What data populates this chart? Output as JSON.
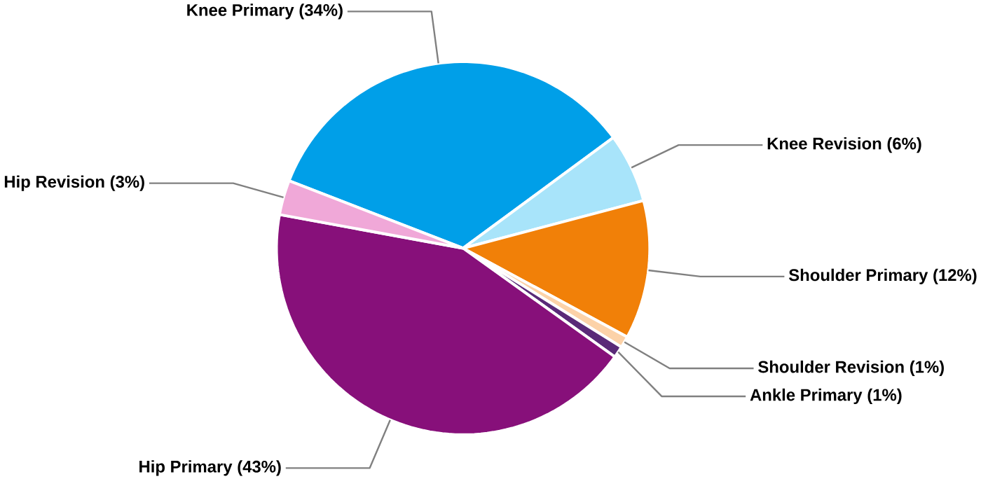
{
  "chart_data": {
    "type": "pie",
    "categories": [
      "Knee Primary (34%)",
      "Knee Revision (6%)",
      "Shoulder Primary (12%)",
      "Shoulder Revision (1%)",
      "Ankle Primary (1%)",
      "Hip Primary (43%)",
      "Hip Revision (3%)"
    ],
    "values": [
      34,
      6,
      12,
      1,
      1,
      43,
      3
    ],
    "colors": [
      "#009fe8",
      "#a8e4fa",
      "#f18008",
      "#fcd2a8",
      "#5a2a78",
      "#87107a",
      "#f0a8d8"
    ]
  }
}
